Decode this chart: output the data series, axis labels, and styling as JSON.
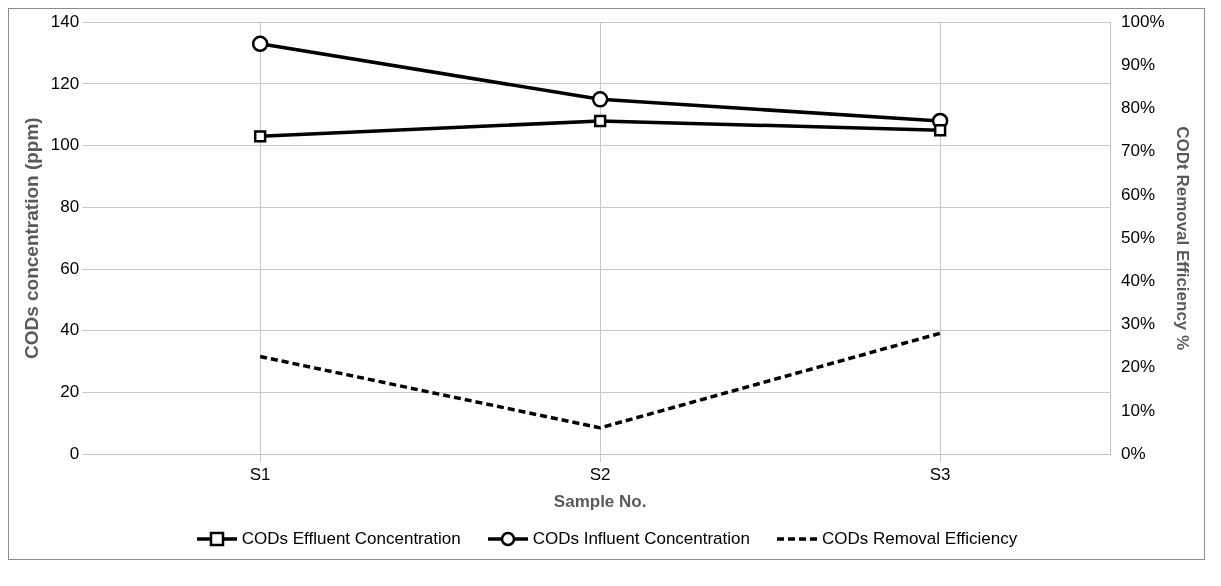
{
  "chart_data": {
    "type": "line",
    "xlabel": "Sample No.",
    "ylabel": "CODs concentration (ppm)",
    "y2label": "CODt Removal Efficiency %",
    "categories": [
      "S1",
      "S2",
      "S3"
    ],
    "series": [
      {
        "name": "CODs Effluent Concentration",
        "color": "#000000",
        "values": [
          103,
          108,
          105
        ],
        "marker": "square",
        "line_style": "solid"
      },
      {
        "name": "CODs Influent Concentration",
        "color": "#000000",
        "values": [
          133,
          115,
          108
        ],
        "marker": "circle",
        "line_style": "solid"
      },
      {
        "name": "CODs Removal Efficiency",
        "color": "#000000",
        "values": [
          22.6,
          6.1,
          28
        ],
        "axis": "y2",
        "marker": "none",
        "line_style": "dashed"
      }
    ],
    "ylim": [
      0,
      140
    ],
    "yticks": [
      0,
      20,
      40,
      60,
      80,
      100,
      120,
      140
    ],
    "y2lim": [
      0,
      100
    ],
    "y2ticks": [
      {
        "value": 0,
        "label": "0%"
      },
      {
        "value": 10,
        "label": "10%"
      },
      {
        "value": 20,
        "label": "20%"
      },
      {
        "value": 30,
        "label": "30%"
      },
      {
        "value": 40,
        "label": "40%"
      },
      {
        "value": 50,
        "label": "50%"
      },
      {
        "value": 60,
        "label": "60%"
      },
      {
        "value": 70,
        "label": "70%"
      },
      {
        "value": 80,
        "label": "80%"
      },
      {
        "value": 90,
        "label": "90%"
      },
      {
        "value": 100,
        "label": "100%"
      }
    ],
    "grid": true,
    "legend": "bottom"
  }
}
